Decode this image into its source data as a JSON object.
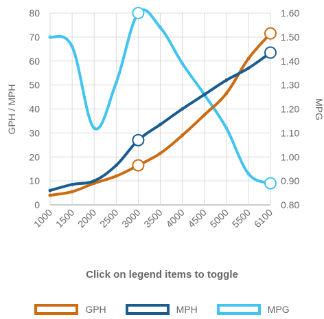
{
  "chart_data": {
    "type": "line",
    "x": [
      "1000",
      "1500",
      "2000",
      "2500",
      "3000",
      "3500",
      "4000",
      "4500",
      "5000",
      "5500",
      "6100"
    ],
    "ylabel_left": "GPH / MPH",
    "ylabel_right": "MPG",
    "ylim_left": [
      0,
      80
    ],
    "ylim_right": [
      0.8,
      1.6
    ],
    "yticks_left": [
      "0",
      "10",
      "20",
      "30",
      "40",
      "50",
      "60",
      "70",
      "80"
    ],
    "yticks_right": [
      "0.80",
      "0.90",
      "1.00",
      "1.10",
      "1.20",
      "1.30",
      "1.40",
      "1.50",
      "1.60"
    ],
    "grid": true,
    "legend_position": "bottom",
    "series": [
      {
        "name": "GPH",
        "axis": "left",
        "color": "#cc6b12",
        "values": [
          4,
          5.5,
          9,
          12,
          16.5,
          21.5,
          29,
          37.5,
          46.5,
          61,
          71.5
        ],
        "highlighted": [
          4,
          10
        ]
      },
      {
        "name": "MPH",
        "axis": "left",
        "color": "#1a5c8f",
        "values": [
          6,
          8.5,
          10,
          16.5,
          27,
          33.5,
          40,
          46,
          52,
          57,
          63.5
        ],
        "highlighted": [
          4,
          10
        ]
      },
      {
        "name": "MPG",
        "axis": "right",
        "color": "#41c4ef",
        "values": [
          1.5,
          1.46,
          1.12,
          1.31,
          1.6,
          1.54,
          1.39,
          1.26,
          1.12,
          0.93,
          0.89
        ],
        "highlighted": [
          4,
          10
        ]
      }
    ]
  },
  "ui": {
    "hint": "Click on legend items to toggle"
  }
}
